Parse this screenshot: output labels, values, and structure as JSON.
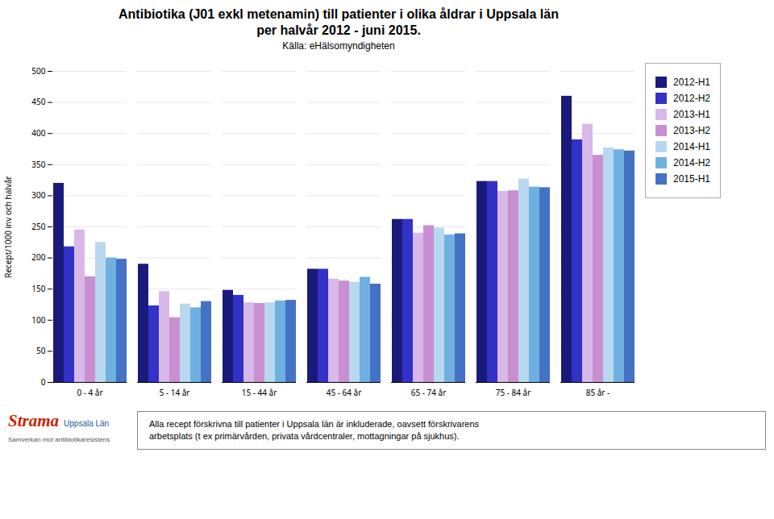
{
  "chart_data": {
    "type": "bar",
    "title": "Antibiotika (J01 exkl metenamin) till patienter i olika åldrar i Uppsala län\nper halvår 2012 - juni 2015.",
    "subtitle": "Källa: eHälsomyndigheten",
    "ylabel": "Recept/1000 inv och halvår",
    "categories": [
      "0 - 4 år",
      "5 - 14 år",
      "15 - 44 år",
      "45 - 64 år",
      "65 - 74 år",
      "75 - 84 år",
      "85 år -"
    ],
    "series": [
      {
        "name": "2012-H1",
        "color": "#1A1A7A",
        "values": [
          320,
          190,
          148,
          182,
          262,
          323,
          460
        ]
      },
      {
        "name": "2012-H2",
        "color": "#3232C8",
        "values": [
          218,
          123,
          140,
          182,
          262,
          323,
          390
        ]
      },
      {
        "name": "2013-H1",
        "color": "#D8B8E8",
        "values": [
          245,
          146,
          128,
          166,
          240,
          307,
          415
        ]
      },
      {
        "name": "2013-H2",
        "color": "#C890D0",
        "values": [
          170,
          104,
          127,
          163,
          252,
          308,
          365
        ]
      },
      {
        "name": "2014-H1",
        "color": "#B8D8F0",
        "values": [
          225,
          126,
          128,
          161,
          248,
          327,
          377
        ]
      },
      {
        "name": "2014-H2",
        "color": "#70B0E0",
        "values": [
          200,
          120,
          131,
          169,
          237,
          314,
          374
        ]
      },
      {
        "name": "2015-H1",
        "color": "#4472C4",
        "values": [
          198,
          130,
          132,
          158,
          239,
          313,
          372
        ]
      }
    ],
    "ylim": [
      0,
      500
    ],
    "yticks": [
      0,
      50,
      100,
      150,
      200,
      250,
      300,
      350,
      400,
      450,
      500
    ],
    "grid": true,
    "legend": "right",
    "annotations": [
      "Alla recept förskrivna till patienter i Uppsala län är inkluderade, oavsett förskrivarens\narbetsplats (t ex primärvården, privata vårdcentraler, mottagningar på sjukhus).",
      "Strama",
      "Uppsala Län",
      "Samverkan mot antibiotikaresistens"
    ]
  }
}
